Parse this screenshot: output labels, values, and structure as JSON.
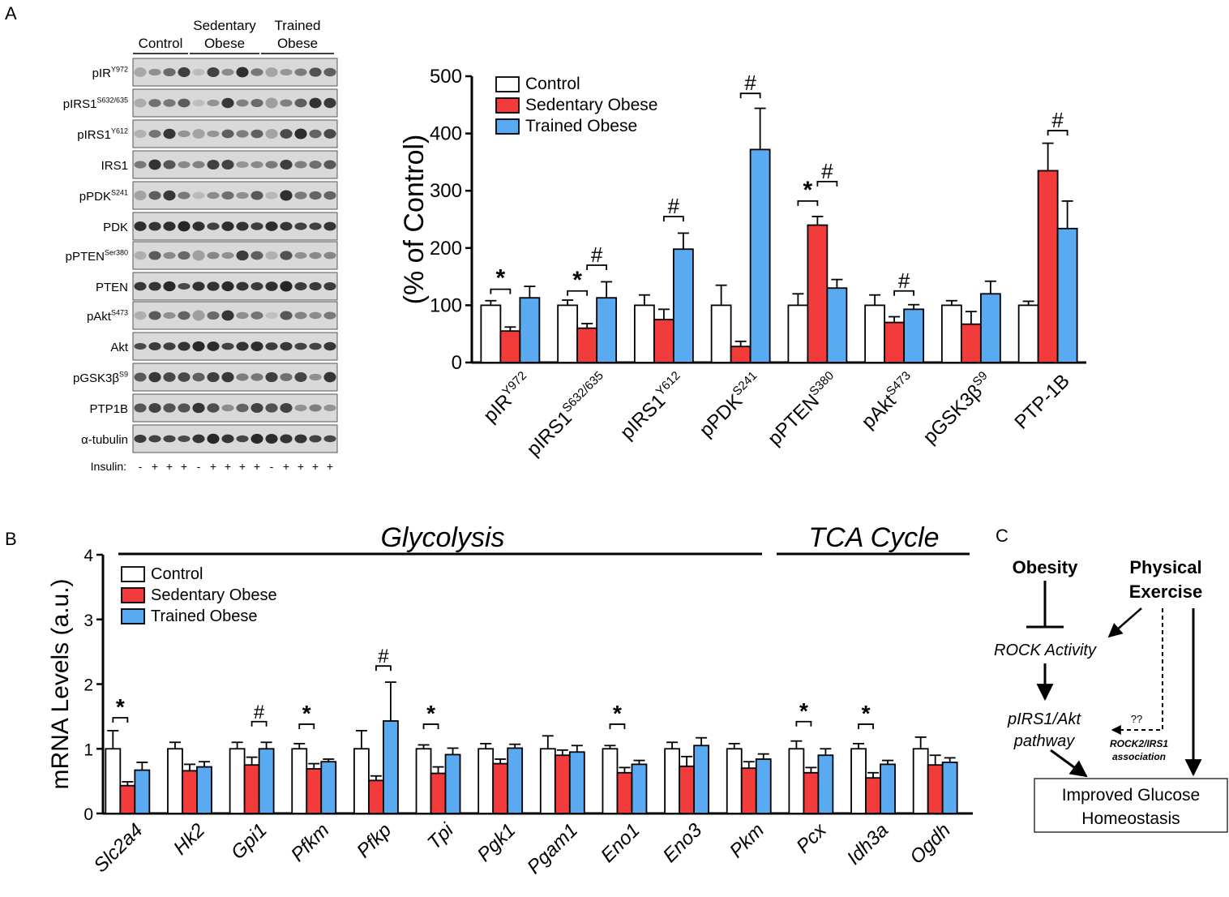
{
  "panels": {
    "a": "A",
    "b": "B",
    "c": "C"
  },
  "blot": {
    "groups": [
      "Control",
      "Sedentary\nObese",
      "Trained\nObese"
    ],
    "rows": [
      "pIR|Y972",
      "pIRS1|S632/635",
      "pIRS1|Y612",
      "IRS1|",
      "pPDK|S241",
      "PDK|",
      "pPTEN|Ser380",
      "PTEN|",
      "pAkt|S473",
      "Akt|",
      "pGSK3β|S9",
      "PTP1B|",
      "α-tubulin|"
    ],
    "insulin_label": "Insulin:",
    "insulin": [
      "-",
      "+",
      "+",
      "+",
      "-",
      "+",
      "+",
      "+",
      "+",
      "-",
      "+",
      "+",
      "+",
      "+"
    ],
    "colors": {
      "band": "#1a1a1a",
      "panel_bg": "#d9d9d9"
    }
  },
  "legend": {
    "series": [
      "Control",
      "Sedentary Obese",
      "Trained Obese"
    ]
  },
  "chart_data": [
    {
      "type": "bar",
      "panel": "A",
      "ylabel": "(% of Control)",
      "ylim": [
        0,
        500
      ],
      "yticks": [
        0,
        100,
        200,
        300,
        400,
        500
      ],
      "categories": [
        "pIR|Y972",
        "pIRS1|S632/635",
        "pIRS1|Y612",
        "pPDK|S241",
        "pPTEN|S380",
        "pAkt|S473",
        "pGSK3β|S9",
        "PTP-1B|"
      ],
      "series": [
        {
          "name": "Control",
          "color": "#ffffff",
          "values": [
            100,
            100,
            100,
            100,
            100,
            100,
            100,
            100
          ],
          "errors": [
            8,
            9,
            18,
            35,
            20,
            18,
            8,
            7
          ]
        },
        {
          "name": "Sedentary Obese",
          "color": "#f23b3b",
          "values": [
            55,
            60,
            75,
            28,
            240,
            70,
            67,
            335
          ],
          "errors": [
            7,
            8,
            18,
            9,
            15,
            10,
            22,
            48
          ]
        },
        {
          "name": "Trained Obese",
          "color": "#5aaaf2",
          "values": [
            113,
            113,
            198,
            372,
            130,
            93,
            120,
            234
          ],
          "errors": [
            20,
            28,
            28,
            72,
            15,
            8,
            22,
            48
          ]
        }
      ],
      "annotations": [
        {
          "cat": 0,
          "from": 0,
          "to": 1,
          "symbol": "*",
          "y": 128
        },
        {
          "cat": 1,
          "from": 0,
          "to": 1,
          "symbol": "*",
          "y": 125
        },
        {
          "cat": 1,
          "from": 1,
          "to": 2,
          "symbol": "#",
          "y": 170
        },
        {
          "cat": 2,
          "from": 1,
          "to": 2,
          "symbol": "#",
          "y": 255
        },
        {
          "cat": 3,
          "from": 1,
          "to": 2,
          "symbol": "#",
          "y": 470
        },
        {
          "cat": 4,
          "from": 0,
          "to": 1,
          "symbol": "*",
          "y": 282
        },
        {
          "cat": 4,
          "from": 1,
          "to": 2,
          "symbol": "#",
          "y": 316
        },
        {
          "cat": 5,
          "from": 1,
          "to": 2,
          "symbol": "#",
          "y": 125
        },
        {
          "cat": 7,
          "from": 1,
          "to": 2,
          "symbol": "#",
          "y": 405
        }
      ]
    },
    {
      "type": "bar",
      "panel": "B",
      "ylabel": "mRNA Levels (a.u.)",
      "ylim": [
        0,
        4
      ],
      "yticks": [
        0,
        1,
        2,
        3,
        4
      ],
      "section_labels": [
        "Glycolysis",
        "TCA  Cycle"
      ],
      "categories": [
        "Slc2a4",
        "Hk2",
        "Gpi1",
        "Pfkm",
        "Pfkp",
        "Tpi",
        "Pgk1",
        "Pgam1",
        "Eno1",
        "Eno3",
        "Pkm",
        "Pcx",
        "Idh3a",
        "Ogdh"
      ],
      "series": [
        {
          "name": "Control",
          "color": "#ffffff",
          "values": [
            1.0,
            1.0,
            1.0,
            1.0,
            1.0,
            1.0,
            1.0,
            1.0,
            1.0,
            1.0,
            1.0,
            1.0,
            1.0,
            1.0
          ],
          "errors": [
            0.28,
            0.1,
            0.1,
            0.08,
            0.28,
            0.06,
            0.08,
            0.2,
            0.05,
            0.1,
            0.08,
            0.12,
            0.08,
            0.18
          ]
        },
        {
          "name": "Sedentary Obese",
          "color": "#f23b3b",
          "values": [
            0.43,
            0.66,
            0.75,
            0.69,
            0.51,
            0.62,
            0.77,
            0.9,
            0.63,
            0.73,
            0.7,
            0.63,
            0.55,
            0.75
          ]
        },
        {
          "name": "Trained Obese",
          "color": "#5aaaf2",
          "values": [
            0.67,
            0.72,
            1.0,
            0.8,
            1.43,
            0.91,
            1.01,
            0.95,
            0.76,
            1.05,
            0.84,
            0.9,
            0.76,
            0.79
          ]
        }
      ],
      "errors_s": [
        0.06,
        0.1,
        0.12,
        0.08,
        0.07,
        0.1,
        0.07,
        0.08,
        0.08,
        0.15,
        0.1,
        0.08,
        0.08,
        0.15
      ],
      "errors_t": [
        0.12,
        0.08,
        0.1,
        0.04,
        0.6,
        0.1,
        0.06,
        0.1,
        0.06,
        0.12,
        0.08,
        0.1,
        0.06,
        0.07
      ],
      "annotations": [
        {
          "cat": 0,
          "from": 0,
          "to": 1,
          "symbol": "*",
          "y": 1.48
        },
        {
          "cat": 2,
          "from": 1,
          "to": 2,
          "symbol": "#",
          "y": 1.42
        },
        {
          "cat": 3,
          "from": 0,
          "to": 1,
          "symbol": "*",
          "y": 1.38
        },
        {
          "cat": 4,
          "from": 1,
          "to": 2,
          "symbol": "#",
          "y": 2.28
        },
        {
          "cat": 5,
          "from": 0,
          "to": 1,
          "symbol": "*",
          "y": 1.38
        },
        {
          "cat": 8,
          "from": 0,
          "to": 1,
          "symbol": "*",
          "y": 1.38
        },
        {
          "cat": 11,
          "from": 0,
          "to": 1,
          "symbol": "*",
          "y": 1.42
        },
        {
          "cat": 12,
          "from": 0,
          "to": 1,
          "symbol": "*",
          "y": 1.38
        }
      ]
    }
  ],
  "diagram": {
    "obesity": "Obesity",
    "exercise": [
      "Physical",
      "Exercise"
    ],
    "rock": "ROCK Activity",
    "pathway": [
      "pIRS1/Akt",
      "pathway"
    ],
    "question": "??",
    "assoc": [
      "ROCK2/IRS1",
      "association"
    ],
    "result": [
      "Improved Glucose",
      "Homeostasis"
    ]
  }
}
